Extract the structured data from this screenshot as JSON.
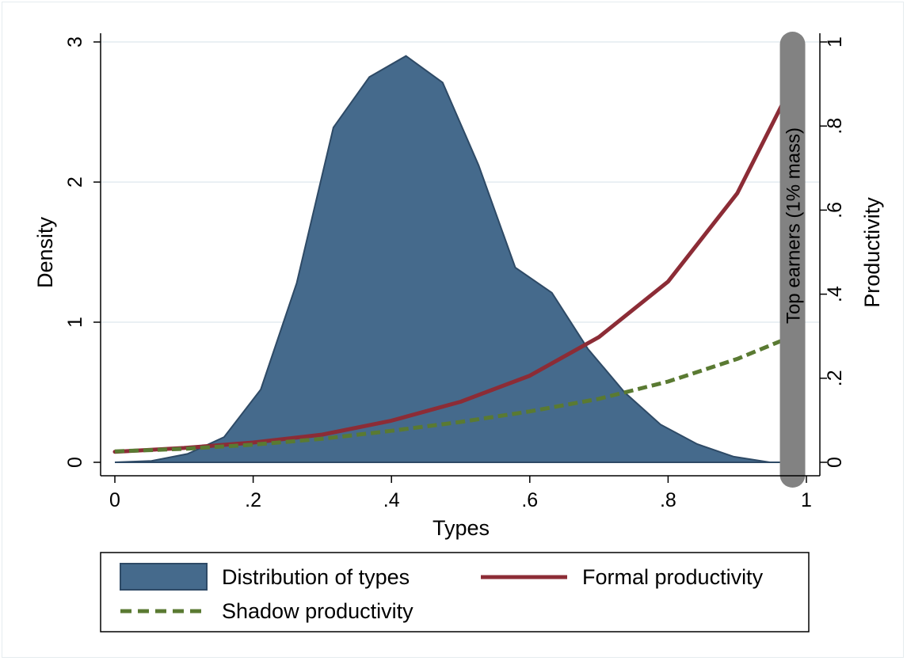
{
  "chart_data": {
    "type": "area",
    "xlabel": "Types",
    "ylabel": "Density",
    "y2label": "Productivity",
    "xlim": [
      0,
      1
    ],
    "ylim": [
      0,
      3
    ],
    "y2lim": [
      0,
      1
    ],
    "xticks": [
      0,
      0.2,
      0.4,
      0.6,
      0.8,
      1
    ],
    "xtick_labels": [
      "0",
      ".2",
      ".4",
      ".6",
      ".8",
      "1"
    ],
    "yticks": [
      0,
      1,
      2,
      3
    ],
    "ytick_labels": [
      "0",
      "1",
      "2",
      "3"
    ],
    "y2ticks": [
      0,
      0.2,
      0.4,
      0.6,
      0.8,
      1
    ],
    "y2tick_labels": [
      "0",
      ".2",
      ".4",
      ".6",
      ".8",
      "1"
    ],
    "grid": true,
    "legend_position": "bottom",
    "series": [
      {
        "name": "Distribution of types",
        "kind": "area",
        "axis": "left",
        "color": "#456a8c",
        "x": [
          0,
          0.053,
          0.105,
          0.158,
          0.211,
          0.263,
          0.316,
          0.368,
          0.421,
          0.474,
          0.526,
          0.579,
          0.632,
          0.684,
          0.737,
          0.789,
          0.842,
          0.895,
          0.947,
          0.98
        ],
        "y": [
          0.0,
          0.01,
          0.06,
          0.18,
          0.52,
          1.28,
          2.39,
          2.75,
          2.9,
          2.71,
          2.12,
          1.39,
          1.21,
          0.81,
          0.5,
          0.27,
          0.13,
          0.04,
          0.0,
          0.0
        ]
      },
      {
        "name": "Formal productivity",
        "kind": "line",
        "axis": "right",
        "color": "#8c2c36",
        "x": [
          0,
          0.1,
          0.2,
          0.3,
          0.4,
          0.5,
          0.6,
          0.7,
          0.8,
          0.9,
          0.98
        ],
        "y": [
          0.025,
          0.034,
          0.047,
          0.066,
          0.099,
          0.144,
          0.206,
          0.298,
          0.43,
          0.64,
          0.9
        ]
      },
      {
        "name": "Shadow productivity",
        "kind": "dashed-line",
        "axis": "right",
        "color": "#5a7a32",
        "x": [
          0,
          0.1,
          0.2,
          0.3,
          0.4,
          0.5,
          0.6,
          0.7,
          0.8,
          0.9,
          0.98
        ],
        "y": [
          0.026,
          0.032,
          0.042,
          0.056,
          0.075,
          0.096,
          0.121,
          0.151,
          0.192,
          0.246,
          0.3
        ]
      }
    ],
    "annotations": [
      {
        "text": "Top earners (1% mass)",
        "x": 0.98,
        "color": "#828282"
      }
    ]
  }
}
